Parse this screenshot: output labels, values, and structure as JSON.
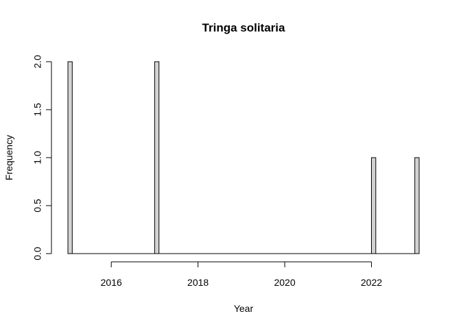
{
  "chart_data": {
    "type": "bar",
    "title": "Tringa solitaria",
    "xlabel": "Year",
    "ylabel": "Frequency",
    "x": [
      2015,
      2017,
      2022,
      2023
    ],
    "values": [
      2,
      2,
      1,
      1
    ],
    "bin_width": 0.1,
    "xlim": [
      2015,
      2023.1
    ],
    "ylim": [
      0,
      2
    ],
    "x_ticks": [
      2016,
      2018,
      2020,
      2022
    ],
    "y_ticks": [
      "0.0",
      "0.5",
      "1.0",
      "1.5",
      "2.0"
    ],
    "bar_fill": "#d3d3d3",
    "grid": false
  }
}
